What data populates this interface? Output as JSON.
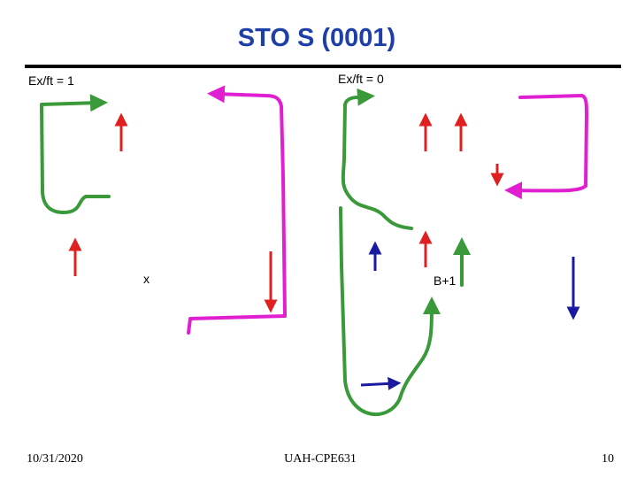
{
  "header": {
    "title": "STO S (0001)"
  },
  "labels": {
    "left": "Ex/ft = 1",
    "right": "Ex/ft = 0",
    "x": "x",
    "b": "B+1"
  },
  "footer": {
    "date": "10/31/2020",
    "center": "UAH-CPE631",
    "page": "10"
  }
}
